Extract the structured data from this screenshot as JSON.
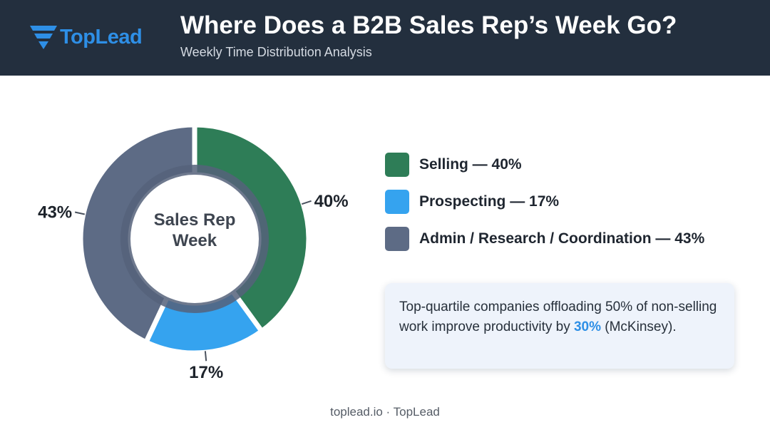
{
  "header": {
    "logo_text": "TopLead",
    "title": "Where Does a B2B Sales Rep’s Week Go?",
    "subtitle": "Weekly Time Distribution Analysis"
  },
  "chart_data": {
    "type": "pie",
    "center_label": [
      "Sales Rep",
      "Week"
    ],
    "slices": [
      {
        "name": "Selling",
        "value": 40,
        "label": "40%",
        "color": "#2e7d57"
      },
      {
        "name": "Prospecting",
        "value": 17,
        "label": "17%",
        "color": "#35a3ef"
      },
      {
        "name": "Admin / Research / Coordination",
        "value": 43,
        "label": "43%",
        "color": "#5d6b85"
      }
    ]
  },
  "legend": [
    {
      "text": "Selling — 40%",
      "color": "#2e7d57"
    },
    {
      "text": "Prospecting — 17%",
      "color": "#35a3ef"
    },
    {
      "text": "Admin / Research / Coordination — 43%",
      "color": "#5d6b85"
    }
  ],
  "callout": {
    "text_before": "Top-quartile companies offloading 50% of non-selling work improve productivity by ",
    "highlight": "30%",
    "text_after": " (McKinsey)."
  },
  "footer": "toplead.io · TopLead"
}
